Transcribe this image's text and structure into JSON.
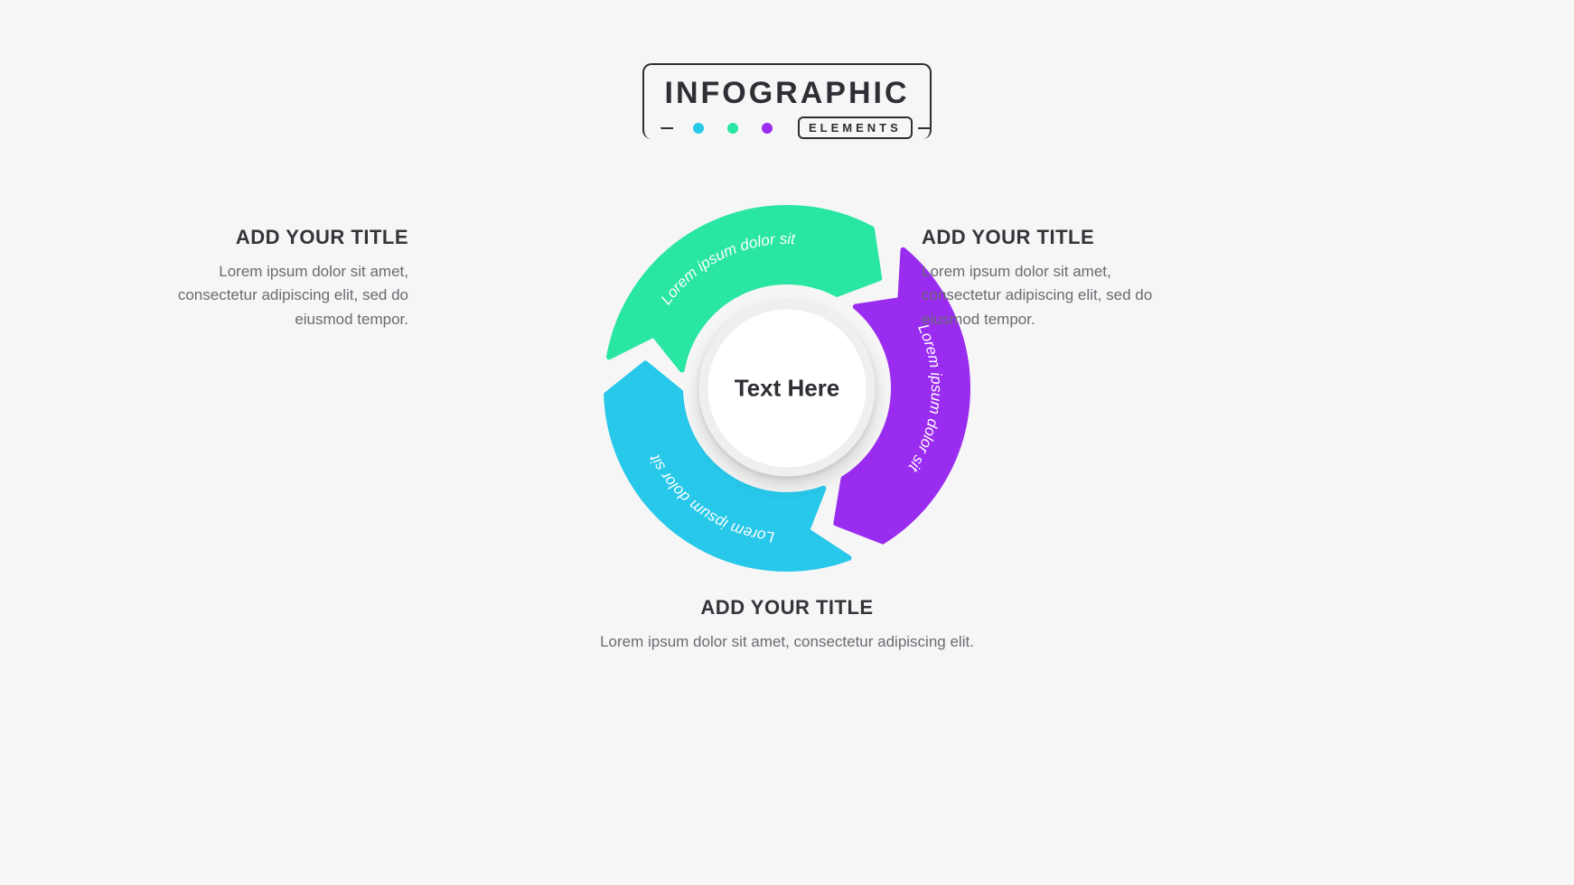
{
  "header": {
    "title": "INFOGRAPHIC",
    "subtitle": "ELEMENTS",
    "dot_colors": [
      "#27c8ea",
      "#29e6a3",
      "#9a2cf0"
    ]
  },
  "diagram": {
    "type": "cycle-arrow",
    "center_label": "Text Here",
    "center_bg": "#ffffff",
    "center_ring": "#efefef",
    "background": "#f6f6f6",
    "outer_radius": 200,
    "inner_radius": 118,
    "gap_deg": 10,
    "label_radius": 160,
    "segments": [
      {
        "color": "#27c8ea",
        "arc_text": "Lorem ipsum dolor sit",
        "start_deg": 160,
        "sweep_deg": 108
      },
      {
        "color": "#29e6a3",
        "arc_text": "Lorem ipsum dolor sit",
        "start_deg": 280,
        "sweep_deg": 108
      },
      {
        "color": "#9a2cf0",
        "arc_text": "Lorem ipsum dolor sit",
        "start_deg": 40,
        "sweep_deg": 108
      }
    ]
  },
  "blocks": {
    "left": {
      "title": "ADD YOUR TITLE",
      "body": "Lorem ipsum dolor sit amet, consectetur adipiscing elit, sed do eiusmod tempor."
    },
    "right": {
      "title": "ADD YOUR TITLE",
      "body": "Lorem ipsum dolor sit amet, consectetur adipiscing elit, sed do eiusmod tempor."
    },
    "bottom": {
      "title": "ADD YOUR TITLE",
      "body": "Lorem ipsum dolor sit amet, consectetur adipiscing elit."
    }
  },
  "typography": {
    "title_color": "#34343b",
    "body_color": "#6a6a72",
    "title_size_pt": 22,
    "body_size_pt": 17,
    "center_size_pt": 26
  }
}
